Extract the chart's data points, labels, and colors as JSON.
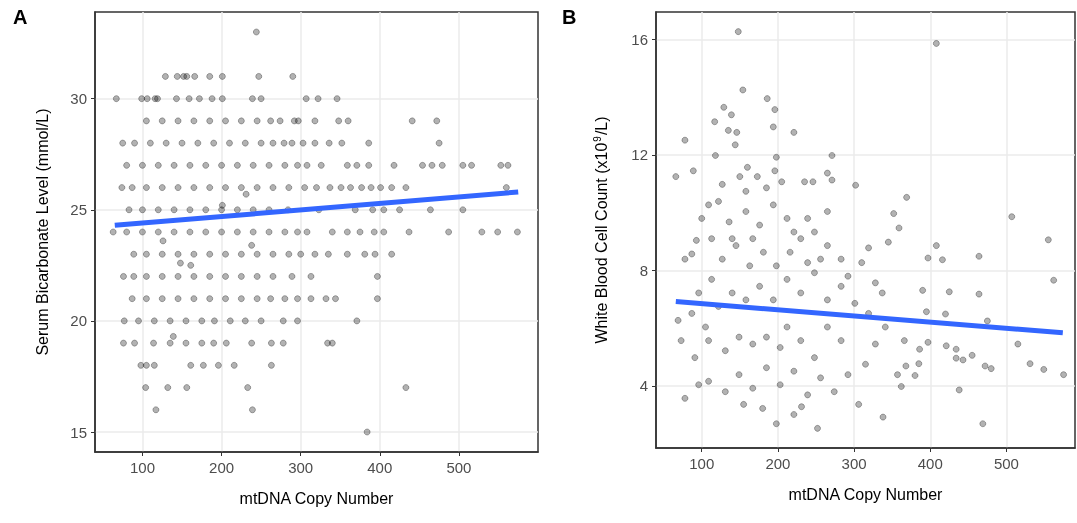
{
  "chart_data": [
    {
      "type": "scatter",
      "title": "A",
      "xlabel": "mtDNA Copy Number",
      "ylabel": "Serum Bicarbonate Level (mmol/L)",
      "xlim": [
        40,
        600
      ],
      "ylim": [
        14.1,
        33.9
      ],
      "xticks": [
        100,
        200,
        300,
        400,
        500
      ],
      "yticks": [
        15,
        20,
        25,
        30
      ],
      "grid": true,
      "series": [
        {
          "marker": "circle",
          "color": "#000000",
          "x": [
            244,
            129,
            144,
            152,
            156,
            166,
            185,
            201,
            247,
            290,
            67,
            99,
            106,
            116,
            119,
            143,
            159,
            172,
            188,
            201,
            239,
            250,
            307,
            322,
            346,
            105,
            125,
            145,
            165,
            185,
            205,
            225,
            245,
            262,
            274,
            292,
            297,
            318,
            348,
            360,
            441,
            472,
            75,
            90,
            110,
            130,
            150,
            170,
            190,
            210,
            230,
            250,
            265,
            279,
            289,
            303,
            318,
            336,
            352,
            386,
            475,
            80,
            100,
            120,
            140,
            160,
            180,
            200,
            220,
            240,
            260,
            280,
            296,
            308,
            326,
            359,
            371,
            386,
            418,
            454,
            466,
            479,
            505,
            516,
            553,
            562,
            74,
            87,
            105,
            125,
            145,
            165,
            185,
            205,
            225,
            245,
            265,
            285,
            305,
            320,
            337,
            351,
            363,
            377,
            389,
            401,
            415,
            433,
            560,
            83,
            100,
            120,
            140,
            160,
            180,
            200,
            220,
            240,
            260,
            284,
            323,
            369,
            391,
            405,
            425,
            464,
            505,
            63,
            80,
            100,
            120,
            140,
            160,
            180,
            200,
            220,
            240,
            260,
            280,
            296,
            308,
            340,
            359,
            375,
            393,
            405,
            437,
            487,
            529,
            549,
            574,
            89,
            105,
            125,
            145,
            165,
            185,
            205,
            225,
            245,
            265,
            285,
            300,
            318,
            335,
            359,
            381,
            394,
            415,
            76,
            89,
            105,
            125,
            145,
            165,
            185,
            205,
            225,
            245,
            265,
            289,
            313,
            397,
            87,
            105,
            125,
            145,
            165,
            185,
            205,
            225,
            245,
            262,
            280,
            296,
            313,
            332,
            344,
            397,
            77,
            95,
            115,
            135,
            155,
            175,
            191,
            211,
            230,
            250,
            278,
            296,
            371,
            76,
            90,
            114,
            135,
            155,
            175,
            190,
            206,
            238,
            263,
            278,
            334,
            340,
            98,
            105,
            115,
            161,
            177,
            196,
            216,
            263,
            104,
            132,
            156,
            233,
            433,
            117,
            239,
            384,
            201,
            231,
            126,
            238,
            148,
            161,
            139
          ],
          "values": [
            33,
            31,
            31,
            31,
            31,
            31,
            31,
            31,
            31,
            31,
            30,
            30,
            30,
            30,
            30,
            30,
            30,
            30,
            30,
            30,
            30,
            30,
            30,
            30,
            30,
            29,
            29,
            29,
            29,
            29,
            29,
            29,
            29,
            29,
            29,
            29,
            29,
            29,
            29,
            29,
            29,
            29,
            28,
            28,
            28,
            28,
            28,
            28,
            28,
            28,
            28,
            28,
            28,
            28,
            28,
            28,
            28,
            28,
            28,
            28,
            28,
            27,
            27,
            27,
            27,
            27,
            27,
            27,
            27,
            27,
            27,
            27,
            27,
            27,
            27,
            27,
            27,
            27,
            27,
            27,
            27,
            27,
            27,
            27,
            27,
            27,
            26,
            26,
            26,
            26,
            26,
            26,
            26,
            26,
            26,
            26,
            26,
            26,
            26,
            26,
            26,
            26,
            26,
            26,
            26,
            26,
            26,
            26,
            26,
            25,
            25,
            25,
            25,
            25,
            25,
            25,
            25,
            25,
            25,
            25,
            25,
            25,
            25,
            25,
            25,
            25,
            25,
            24,
            24,
            24,
            24,
            24,
            24,
            24,
            24,
            24,
            24,
            24,
            24,
            24,
            24,
            24,
            24,
            24,
            24,
            24,
            24,
            24,
            24,
            24,
            24,
            23,
            23,
            23,
            23,
            23,
            23,
            23,
            23,
            23,
            23,
            23,
            23,
            23,
            23,
            23,
            23,
            23,
            23,
            22,
            22,
            22,
            22,
            22,
            22,
            22,
            22,
            22,
            22,
            22,
            22,
            22,
            22,
            21,
            21,
            21,
            21,
            21,
            21,
            21,
            21,
            21,
            21,
            21,
            21,
            21,
            21,
            21,
            21,
            20,
            20,
            20,
            20,
            20,
            20,
            20,
            20,
            20,
            20,
            20,
            20,
            20,
            19,
            19,
            19,
            19,
            19,
            19,
            19,
            19,
            19,
            19,
            19,
            19,
            19,
            18,
            18,
            18,
            18,
            18,
            18,
            18,
            18,
            17,
            17,
            17,
            17,
            17,
            16,
            16,
            15,
            25.2,
            25.7,
            23.6,
            23.4,
            22.6,
            22.5,
            19.3
          ]
        },
        {
          "type": "line",
          "marker": "none",
          "color": "#3366ff",
          "x": [
            65,
            575
          ],
          "values": [
            24.3,
            25.8
          ]
        }
      ]
    },
    {
      "type": "scatter",
      "title": "B",
      "xlabel": "mtDNA Copy Number",
      "ylabel": "White Blood Cell Count (x10$^{9}$/L)",
      "xlim": [
        40,
        590
      ],
      "ylim": [
        1.85,
        16.95
      ],
      "xticks": [
        100,
        200,
        300,
        400,
        500
      ],
      "yticks": [
        4,
        8,
        12,
        16
      ],
      "grid": true,
      "series": [
        {
          "marker": "circle",
          "color": "#000000",
          "x": [
            148,
            408,
            154,
            186,
            129,
            196,
            117,
            139,
            135,
            146,
            221,
            194,
            78,
            144,
            271,
            118,
            198,
            66,
            89,
            160,
            150,
            173,
            196,
            205,
            235,
            246,
            265,
            271,
            302,
            369,
            352,
            507,
            359,
            555,
            345,
            408,
            319,
            397,
            416,
            464,
            562,
            425,
            464,
            475,
            515,
            531,
            549,
            575,
            455,
            469,
            438,
            338,
            252,
            198,
            221,
            180,
            155,
            78,
            231,
            306,
            362,
            380,
            357,
            421,
            434,
            434,
            443,
            472,
            480,
            397,
            366,
            368,
            385,
            386,
            395,
            420,
            390,
            78,
            87,
            93,
            100,
            109,
            122,
            136,
            158,
            176,
            194,
            212,
            230,
            248,
            265,
            283,
            292,
            310,
            328,
            87,
            73,
            69,
            91,
            96,
            109,
            131,
            149,
            167,
            185,
            203,
            221,
            239,
            256,
            274,
            292,
            315,
            328,
            341,
            283,
            265,
            248,
            230,
            212,
            203,
            185,
            167,
            149,
            131,
            109,
            105,
            122,
            140,
            158,
            176,
            194,
            212,
            230,
            248,
            265,
            283,
            301,
            319,
            337,
            127,
            145,
            163,
            181,
            198,
            216,
            239,
            256,
            113,
            96,
            113,
            140,
            167,
            221,
            239,
            265,
            158,
            127,
            185
          ],
          "values": [
            16.27,
            15.86,
            14.25,
            13.95,
            13.65,
            13.57,
            13.15,
            13.39,
            12.85,
            12.78,
            12.78,
            12.97,
            12.51,
            12.35,
            11.98,
            11.98,
            11.92,
            11.25,
            11.45,
            11.57,
            11.25,
            11.25,
            11.45,
            11.07,
            11.07,
            11.07,
            11.37,
            11.13,
            10.95,
            10.53,
            9.97,
            9.86,
            9.47,
            9.06,
            8.98,
            8.86,
            8.78,
            8.43,
            8.37,
            8.49,
            7.66,
            7.26,
            7.18,
            6.25,
            5.45,
            4.77,
            4.57,
            4.39,
            5.06,
            2.69,
            3.86,
            2.92,
            2.53,
            2.69,
            3.01,
            3.22,
            3.36,
            3.57,
            3.28,
            3.36,
            3.98,
            4.36,
            4.39,
            5.39,
            5.27,
            4.96,
            4.9,
            4.69,
            4.6,
            5.51,
            5.57,
            4.69,
            4.77,
            5.27,
            6.57,
            6.49,
            7.31,
            8.39,
            8.57,
            9.04,
            9.8,
            10.27,
            10.39,
            9.68,
            10.04,
            9.57,
            10.27,
            9.8,
            9.1,
            9.33,
            8.86,
            8.39,
            7.8,
            8.27,
            7.57,
            6.51,
            5.57,
            6.27,
            4.98,
            4.04,
            4.16,
            3.8,
            4.39,
            3.92,
            4.63,
            4.04,
            4.51,
            3.69,
            4.28,
            3.8,
            4.39,
            4.75,
            5.45,
            6.04,
            5.57,
            6.04,
            4.98,
            5.57,
            6.04,
            5.33,
            5.69,
            5.45,
            5.69,
            5.22,
            5.57,
            6.04,
            6.75,
            7.22,
            6.98,
            7.45,
            6.98,
            7.69,
            7.22,
            7.92,
            6.98,
            7.45,
            6.86,
            6.51,
            7.22,
            8.39,
            8.86,
            8.16,
            8.63,
            8.16,
            8.63,
            8.27,
            8.39,
            7.69,
            7.22,
            9.1,
            9.1,
            9.1,
            9.33,
            9.8,
            10.04,
            10.74,
            10.98,
            10.86
          ]
        },
        {
          "type": "line",
          "marker": "none",
          "color": "#3366ff",
          "x": [
            66,
            574
          ],
          "values": [
            6.92,
            5.84
          ]
        }
      ]
    }
  ]
}
